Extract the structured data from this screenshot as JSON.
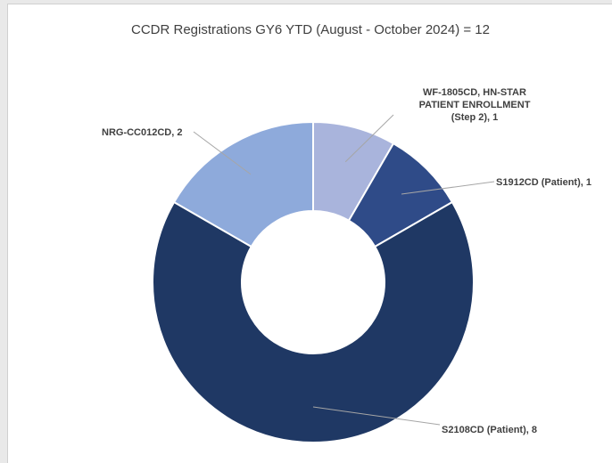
{
  "chart_data": {
    "type": "donut",
    "title": "CCDR Registrations GY6 YTD  (August - October 2024) = 12",
    "values": [
      1,
      1,
      8,
      2
    ],
    "value_labels": [
      "WF-1805CD, HN-STAR PATIENT ENROLLMENT (Step 2), 1",
      "S1912CD (Patient), 1",
      "S2108CD (Patient), 8",
      "NRG-CC012CD, 2"
    ],
    "colors": [
      "#a9b4dc",
      "#2f4b88",
      "#1f3864",
      "#8eaadb"
    ]
  }
}
